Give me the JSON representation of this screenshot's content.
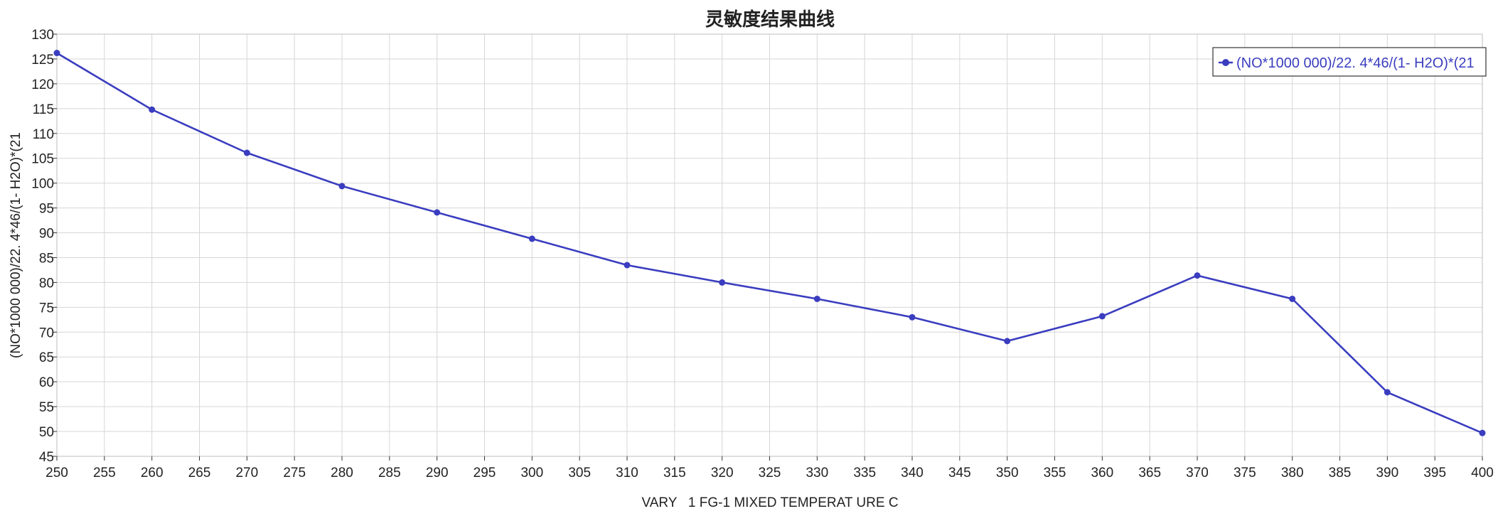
{
  "chart_data": {
    "type": "line",
    "title": "灵敏度结果曲线",
    "xlabel": "VARY   1 FG-1 MIXED TEMPERAT URE C",
    "ylabel": "(NO*1000 000)/22. 4*46/(1- H2O)*(21",
    "xlim": [
      250,
      400
    ],
    "ylim": [
      45,
      130
    ],
    "x_ticks": [
      250,
      255,
      260,
      265,
      270,
      275,
      280,
      285,
      290,
      295,
      300,
      305,
      310,
      315,
      320,
      325,
      330,
      335,
      340,
      345,
      350,
      355,
      360,
      365,
      370,
      375,
      380,
      385,
      390,
      395,
      400
    ],
    "y_ticks": [
      45,
      50,
      55,
      60,
      65,
      70,
      75,
      80,
      85,
      90,
      95,
      100,
      105,
      110,
      115,
      120,
      125,
      130
    ],
    "grid": true,
    "legend_position": "top-right",
    "series": [
      {
        "name": "(NO*1000 000)/22. 4*46/(1- H2O)*(21",
        "color": "#3a3dbf",
        "x": [
          250,
          260,
          270,
          280,
          290,
          300,
          310,
          320,
          330,
          340,
          350,
          360,
          370,
          380,
          390,
          400
        ],
        "values": [
          126.2,
          114.8,
          106.1,
          99.4,
          94.1,
          88.8,
          83.5,
          80.0,
          76.7,
          73.0,
          68.2,
          73.2,
          81.4,
          76.7,
          57.9,
          49.7
        ]
      }
    ]
  }
}
